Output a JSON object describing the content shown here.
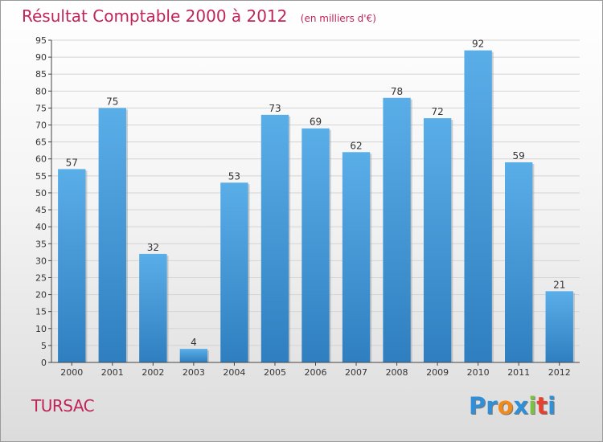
{
  "chart_data": {
    "type": "bar",
    "title": "Résultat Comptable 2000 à 2012",
    "subtitle": "(en milliers d'€)",
    "categories": [
      "2000",
      "2001",
      "2002",
      "2003",
      "2004",
      "2005",
      "2006",
      "2007",
      "2008",
      "2009",
      "2010",
      "2011",
      "2012"
    ],
    "values": [
      57,
      75,
      32,
      4,
      53,
      73,
      69,
      62,
      78,
      72,
      92,
      59,
      21
    ],
    "ylim": [
      0,
      95
    ],
    "yticks": [
      0,
      5,
      10,
      15,
      20,
      25,
      30,
      35,
      40,
      45,
      50,
      55,
      60,
      65,
      70,
      75,
      80,
      85,
      90,
      95
    ],
    "xlabel": "",
    "ylabel": "",
    "grid": true,
    "bar_color_top": "#5aaee8",
    "bar_color_bottom": "#2f7fc0"
  },
  "footer": {
    "commune": "TURSAC",
    "logo_letters": [
      "P",
      "r",
      "o",
      "x",
      "i",
      "t",
      "i"
    ],
    "logo_colors": [
      "#2f8fd8",
      "#2f8fd8",
      "#f08a1c",
      "#2f8fd8",
      "#7cc242",
      "#e8402c",
      "#2f8fd8"
    ]
  },
  "colors": {
    "title": "#c0245a",
    "grid": "#d4d4d4"
  }
}
